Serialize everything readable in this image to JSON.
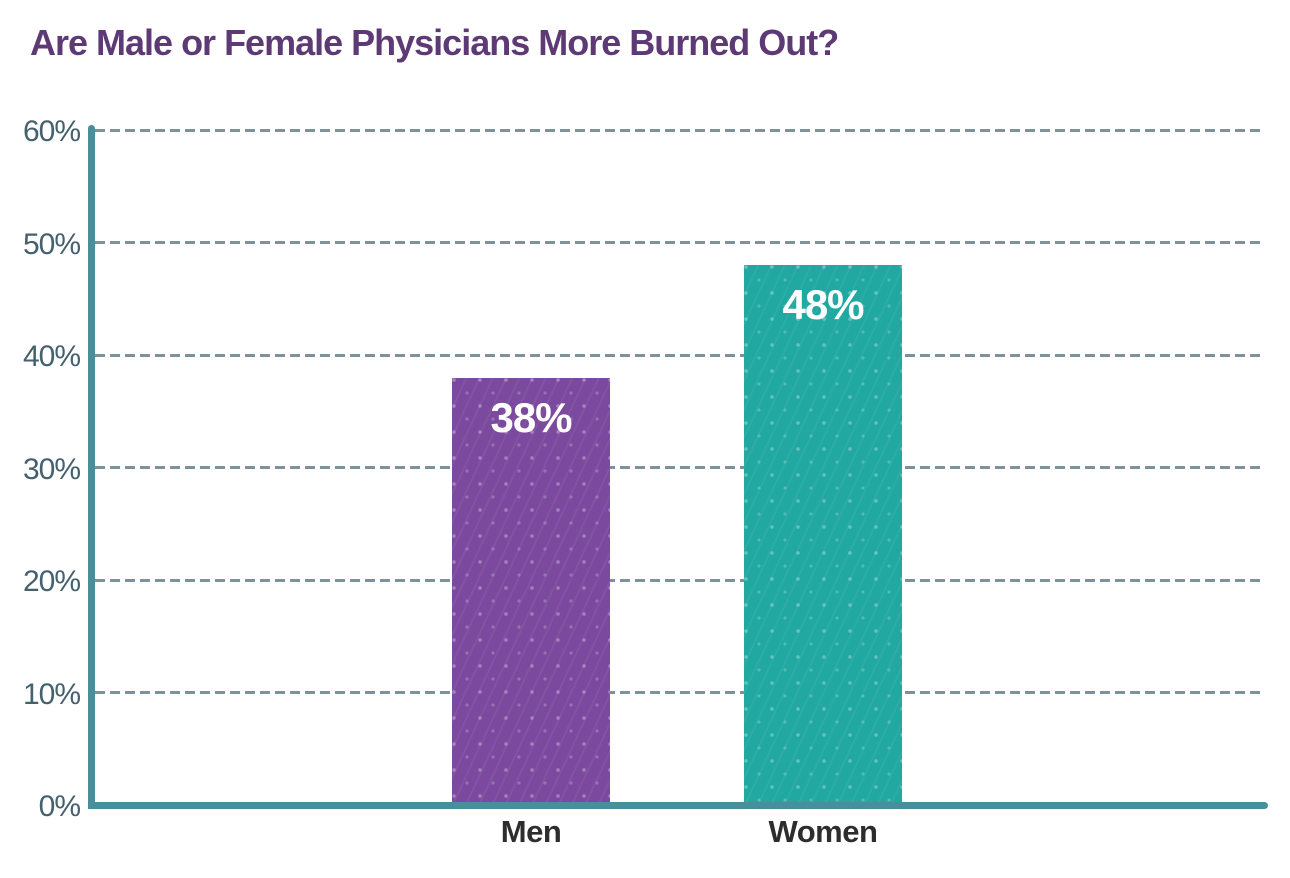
{
  "chart_data": {
    "type": "bar",
    "title": "Are Male or Female Physicians More Burned Out?",
    "categories": [
      "Men",
      "Women"
    ],
    "values": [
      38,
      48
    ],
    "value_labels": [
      "38%",
      "48%"
    ],
    "bar_colors": [
      "#7b4a9e",
      "#21a8a1"
    ],
    "xlabel": "",
    "ylabel": "",
    "ylim": [
      0,
      60
    ],
    "yticks": [
      0,
      10,
      20,
      30,
      40,
      50,
      60
    ],
    "ytick_labels": [
      "0%",
      "10%",
      "20%",
      "30%",
      "40%",
      "50%",
      "60%"
    ],
    "grid": "horizontal-dashed",
    "legend": "none",
    "colors": {
      "title": "#5d3a75",
      "axis": "#4a8e9c",
      "gridline": "#7e929d",
      "tick_label": "#45616d",
      "category_label": "#2d2d2d",
      "value_label": "#ffffff",
      "background": "#ffffff"
    }
  }
}
